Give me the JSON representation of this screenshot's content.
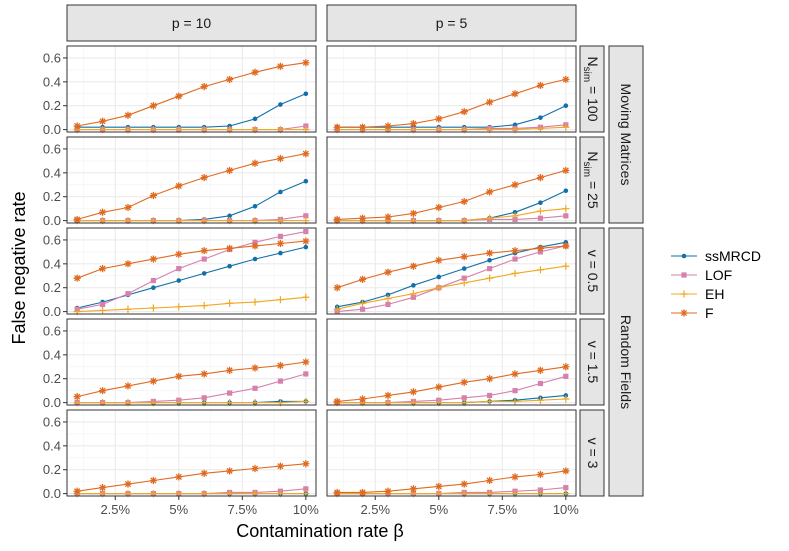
{
  "chart_data": {
    "type": "line",
    "xlabel": "Contamination rate β",
    "ylabel": "False negative rate",
    "x": [
      1,
      2,
      3,
      4,
      5,
      6,
      7,
      8,
      9,
      10
    ],
    "xlim": [
      0.6,
      10.4
    ],
    "ylim": [
      -0.02,
      0.7
    ],
    "x_ticks": [
      {
        "value": 2.5,
        "label": "2.5%"
      },
      {
        "value": 5,
        "label": "5%"
      },
      {
        "value": 7.5,
        "label": "7.5%"
      },
      {
        "value": 10,
        "label": "10%"
      }
    ],
    "y_ticks": [
      {
        "value": 0.0,
        "label": "0.0"
      },
      {
        "value": 0.2,
        "label": "0.2"
      },
      {
        "value": 0.4,
        "label": "0.4"
      },
      {
        "value": 0.6,
        "label": "0.6"
      }
    ],
    "col_strips": [
      "p = 10",
      "p = 5"
    ],
    "row_strips": [
      {
        "base": "N",
        "sub": "sim",
        "rest": " = 100"
      },
      {
        "base": "N",
        "sub": "sim",
        "rest": " = 25"
      },
      {
        "base": "v = 0.5",
        "sub": "",
        "rest": ""
      },
      {
        "base": "v = 1.5",
        "sub": "",
        "rest": ""
      },
      {
        "base": "v = 3",
        "sub": "",
        "rest": ""
      }
    ],
    "group_strips": [
      "Moving Matrices",
      "Random Fields"
    ],
    "series_styles": [
      {
        "name": "ssMRCD",
        "color": "#1170AA",
        "marker": "circle"
      },
      {
        "name": "LOF",
        "color": "#D680AD",
        "marker": "square"
      },
      {
        "name": "EH",
        "color": "#F0A820",
        "marker": "plus"
      },
      {
        "name": "F",
        "color": "#E06B20",
        "marker": "asterisk"
      }
    ],
    "panels": [
      {
        "row": 0,
        "col": 0,
        "series": {
          "ssMRCD": [
            0.02,
            0.02,
            0.02,
            0.02,
            0.02,
            0.02,
            0.03,
            0.09,
            0.21,
            0.3
          ],
          "LOF": [
            0.0,
            0.0,
            0.0,
            0.0,
            0.0,
            0.0,
            0.0,
            0.0,
            0.0,
            0.03
          ],
          "EH": [
            0.0,
            0.0,
            0.0,
            0.0,
            0.0,
            0.0,
            0.0,
            0.0,
            0.0,
            0.0
          ],
          "F": [
            0.03,
            0.07,
            0.12,
            0.2,
            0.28,
            0.36,
            0.42,
            0.48,
            0.53,
            0.56
          ]
        }
      },
      {
        "row": 0,
        "col": 1,
        "series": {
          "ssMRCD": [
            0.02,
            0.02,
            0.02,
            0.02,
            0.02,
            0.02,
            0.02,
            0.04,
            0.1,
            0.2
          ],
          "LOF": [
            0.0,
            0.0,
            0.0,
            0.0,
            0.0,
            0.0,
            0.01,
            0.01,
            0.02,
            0.04
          ],
          "EH": [
            0.0,
            0.0,
            0.0,
            0.0,
            0.0,
            0.0,
            0.0,
            0.0,
            0.01,
            0.02
          ],
          "F": [
            0.02,
            0.02,
            0.03,
            0.05,
            0.09,
            0.15,
            0.23,
            0.3,
            0.37,
            0.42
          ]
        }
      },
      {
        "row": 1,
        "col": 0,
        "series": {
          "ssMRCD": [
            0.0,
            0.0,
            0.0,
            0.0,
            0.0,
            0.01,
            0.04,
            0.12,
            0.24,
            0.33
          ],
          "LOF": [
            0.0,
            0.0,
            0.0,
            0.0,
            0.0,
            0.0,
            0.0,
            0.0,
            0.01,
            0.04
          ],
          "EH": [
            0.0,
            0.0,
            0.0,
            0.0,
            0.0,
            0.0,
            0.0,
            0.0,
            0.0,
            0.0
          ],
          "F": [
            0.01,
            0.07,
            0.11,
            0.21,
            0.29,
            0.36,
            0.42,
            0.48,
            0.52,
            0.56
          ]
        }
      },
      {
        "row": 1,
        "col": 1,
        "series": {
          "ssMRCD": [
            0.0,
            0.0,
            0.0,
            0.0,
            0.0,
            0.0,
            0.02,
            0.07,
            0.15,
            0.25
          ],
          "LOF": [
            0.0,
            0.0,
            0.0,
            0.0,
            0.0,
            0.0,
            0.01,
            0.01,
            0.02,
            0.04
          ],
          "EH": [
            0.0,
            0.0,
            0.0,
            0.0,
            0.0,
            0.0,
            0.02,
            0.04,
            0.08,
            0.1
          ],
          "F": [
            0.01,
            0.02,
            0.03,
            0.06,
            0.11,
            0.16,
            0.24,
            0.3,
            0.36,
            0.42
          ]
        }
      },
      {
        "row": 2,
        "col": 0,
        "series": {
          "ssMRCD": [
            0.03,
            0.08,
            0.14,
            0.2,
            0.26,
            0.32,
            0.38,
            0.44,
            0.49,
            0.54
          ],
          "LOF": [
            0.02,
            0.06,
            0.15,
            0.26,
            0.36,
            0.44,
            0.52,
            0.58,
            0.63,
            0.67
          ],
          "EH": [
            0.0,
            0.01,
            0.02,
            0.03,
            0.04,
            0.05,
            0.07,
            0.08,
            0.1,
            0.12
          ],
          "F": [
            0.28,
            0.36,
            0.4,
            0.44,
            0.48,
            0.51,
            0.53,
            0.55,
            0.57,
            0.59
          ]
        }
      },
      {
        "row": 2,
        "col": 1,
        "series": {
          "ssMRCD": [
            0.04,
            0.08,
            0.14,
            0.22,
            0.29,
            0.36,
            0.43,
            0.49,
            0.54,
            0.58
          ],
          "LOF": [
            0.0,
            0.02,
            0.06,
            0.12,
            0.2,
            0.28,
            0.36,
            0.44,
            0.5,
            0.55
          ],
          "EH": [
            0.02,
            0.07,
            0.11,
            0.15,
            0.2,
            0.24,
            0.28,
            0.32,
            0.35,
            0.38
          ],
          "F": [
            0.2,
            0.27,
            0.33,
            0.38,
            0.43,
            0.46,
            0.49,
            0.51,
            0.53,
            0.55
          ]
        }
      },
      {
        "row": 3,
        "col": 0,
        "series": {
          "ssMRCD": [
            0.0,
            0.0,
            0.0,
            0.0,
            0.0,
            0.0,
            0.0,
            0.0,
            0.01,
            0.01
          ],
          "LOF": [
            0.0,
            0.0,
            0.0,
            0.01,
            0.02,
            0.04,
            0.08,
            0.12,
            0.18,
            0.24
          ],
          "EH": [
            0.0,
            0.0,
            0.0,
            0.0,
            0.0,
            0.0,
            0.0,
            0.0,
            0.0,
            0.01
          ],
          "F": [
            0.05,
            0.1,
            0.14,
            0.18,
            0.22,
            0.24,
            0.27,
            0.29,
            0.31,
            0.34
          ]
        }
      },
      {
        "row": 3,
        "col": 1,
        "series": {
          "ssMRCD": [
            0.0,
            0.0,
            0.0,
            0.0,
            0.0,
            0.0,
            0.01,
            0.02,
            0.04,
            0.06
          ],
          "LOF": [
            0.0,
            0.0,
            0.0,
            0.01,
            0.02,
            0.04,
            0.06,
            0.1,
            0.16,
            0.22
          ],
          "EH": [
            0.0,
            0.0,
            0.0,
            0.0,
            0.0,
            0.0,
            0.01,
            0.01,
            0.02,
            0.03
          ],
          "F": [
            0.01,
            0.03,
            0.06,
            0.09,
            0.13,
            0.17,
            0.2,
            0.24,
            0.27,
            0.3
          ]
        }
      },
      {
        "row": 4,
        "col": 0,
        "series": {
          "ssMRCD": [
            0.0,
            0.0,
            0.0,
            0.0,
            0.0,
            0.0,
            0.0,
            0.0,
            0.0,
            0.0
          ],
          "LOF": [
            0.0,
            0.0,
            0.0,
            0.0,
            0.0,
            0.0,
            0.01,
            0.01,
            0.02,
            0.04
          ],
          "EH": [
            0.0,
            0.0,
            0.0,
            0.0,
            0.0,
            0.0,
            0.0,
            0.0,
            0.0,
            0.0
          ],
          "F": [
            0.02,
            0.05,
            0.08,
            0.11,
            0.14,
            0.17,
            0.19,
            0.21,
            0.23,
            0.25
          ]
        }
      },
      {
        "row": 4,
        "col": 1,
        "series": {
          "ssMRCD": [
            0.0,
            0.0,
            0.0,
            0.0,
            0.0,
            0.0,
            0.0,
            0.0,
            0.0,
            0.0
          ],
          "LOF": [
            0.0,
            0.0,
            0.0,
            0.0,
            0.0,
            0.01,
            0.01,
            0.02,
            0.03,
            0.05
          ],
          "EH": [
            0.0,
            0.0,
            0.0,
            0.0,
            0.0,
            0.0,
            0.0,
            0.0,
            0.0,
            0.0
          ],
          "F": [
            0.01,
            0.01,
            0.02,
            0.04,
            0.06,
            0.08,
            0.11,
            0.14,
            0.16,
            0.19
          ]
        }
      }
    ]
  }
}
